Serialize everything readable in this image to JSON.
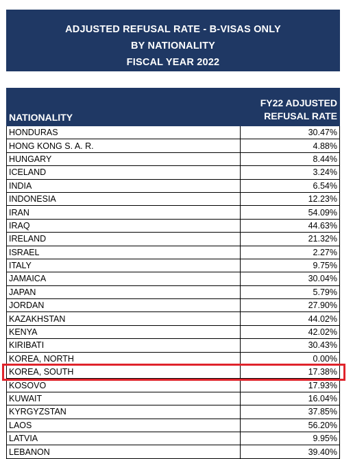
{
  "title": {
    "line1": "ADJUSTED REFUSAL RATE - B-VISAS ONLY",
    "line2": "BY NATIONALITY",
    "line3": "FISCAL YEAR 2022"
  },
  "table": {
    "headers": {
      "nationality": "NATIONALITY",
      "rate_line1": "FY22 ADJUSTED",
      "rate_line2": "REFUSAL RATE"
    },
    "rows": [
      {
        "nationality": "HONDURAS",
        "rate": "30.47%"
      },
      {
        "nationality": "HONG KONG S. A. R.",
        "rate": "4.88%"
      },
      {
        "nationality": "HUNGARY",
        "rate": "8.44%"
      },
      {
        "nationality": "ICELAND",
        "rate": "3.24%"
      },
      {
        "nationality": "INDIA",
        "rate": "6.54%"
      },
      {
        "nationality": "INDONESIA",
        "rate": "12.23%"
      },
      {
        "nationality": "IRAN",
        "rate": "54.09%"
      },
      {
        "nationality": "IRAQ",
        "rate": "44.63%"
      },
      {
        "nationality": "IRELAND",
        "rate": "21.32%"
      },
      {
        "nationality": "ISRAEL",
        "rate": "2.27%"
      },
      {
        "nationality": "ITALY",
        "rate": "9.75%"
      },
      {
        "nationality": "JAMAICA",
        "rate": "30.04%"
      },
      {
        "nationality": "JAPAN",
        "rate": "5.79%"
      },
      {
        "nationality": "JORDAN",
        "rate": "27.90%"
      },
      {
        "nationality": "KAZAKHSTAN",
        "rate": "44.02%"
      },
      {
        "nationality": "KENYA",
        "rate": "42.02%"
      },
      {
        "nationality": "KIRIBATI",
        "rate": "30.43%"
      },
      {
        "nationality": "KOREA, NORTH",
        "rate": "0.00%"
      },
      {
        "nationality": "KOREA, SOUTH",
        "rate": "17.38%"
      },
      {
        "nationality": "KOSOVO",
        "rate": "17.93%"
      },
      {
        "nationality": "KUWAIT",
        "rate": "16.04%"
      },
      {
        "nationality": "KYRGYZSTAN",
        "rate": "37.85%"
      },
      {
        "nationality": "LAOS",
        "rate": "56.20%"
      },
      {
        "nationality": "LATVIA",
        "rate": "9.95%"
      },
      {
        "nationality": "LEBANON",
        "rate": "39.40%"
      }
    ],
    "highlighted_row": "KOREA, SOUTH"
  },
  "colors": {
    "header_bg": "#1f3864",
    "highlight_border": "#e0232b"
  }
}
